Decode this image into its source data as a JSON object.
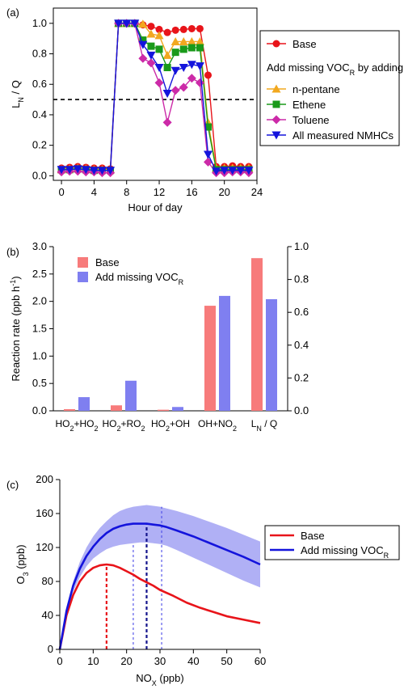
{
  "chart_data": [
    {
      "type": "line",
      "panel_label": "(a)",
      "xlabel": "Hour of day",
      "ylabel": "L",
      "ylabel_sub": "N",
      "ylabel_tail": " / Q",
      "xlim": [
        -1,
        24
      ],
      "ylim": [
        -0.03,
        1.1
      ],
      "xticks": [
        0,
        4,
        8,
        12,
        16,
        20,
        24
      ],
      "yticks": [
        0.0,
        0.2,
        0.4,
        0.6,
        0.8,
        1.0
      ],
      "ytick_labels": [
        "0.0",
        "0.2",
        "0.4",
        "0.6",
        "0.8",
        "1.0"
      ],
      "reference_line": {
        "y": 0.5,
        "style": "dashed"
      },
      "legend_heading": "Add missing VOC",
      "legend_heading_sub": "R",
      "legend_heading_tail": " by adding",
      "x": [
        0,
        1,
        2,
        3,
        4,
        5,
        6,
        7,
        8,
        9,
        10,
        11,
        12,
        13,
        14,
        15,
        16,
        17,
        18,
        19,
        20,
        21,
        22,
        23
      ],
      "series": [
        {
          "name": "Base",
          "color": "#e8141a",
          "marker": "circle",
          "values": [
            0.05,
            0.055,
            0.06,
            0.055,
            0.05,
            0.05,
            0.045,
            1.0,
            1.0,
            1.0,
            0.99,
            0.98,
            0.96,
            0.94,
            0.955,
            0.96,
            0.965,
            0.965,
            0.66,
            0.06,
            0.06,
            0.065,
            0.06,
            0.06
          ]
        },
        {
          "name": "n-pentane",
          "color": "#f2a81f",
          "marker": "triangle-up",
          "values": [
            0.04,
            0.045,
            0.05,
            0.045,
            0.04,
            0.04,
            0.04,
            1.0,
            1.0,
            1.0,
            0.995,
            0.93,
            0.92,
            0.79,
            0.88,
            0.88,
            0.88,
            0.88,
            0.35,
            0.05,
            0.05,
            0.05,
            0.05,
            0.05
          ]
        },
        {
          "name": "Ethene",
          "color": "#1a9a1a",
          "marker": "square",
          "values": [
            0.04,
            0.04,
            0.045,
            0.04,
            0.035,
            0.035,
            0.035,
            1.0,
            1.0,
            1.0,
            0.89,
            0.85,
            0.83,
            0.71,
            0.81,
            0.83,
            0.84,
            0.84,
            0.32,
            0.04,
            0.04,
            0.04,
            0.04,
            0.04
          ]
        },
        {
          "name": "Toluene",
          "color": "#cc2aa8",
          "marker": "diamond",
          "values": [
            0.025,
            0.03,
            0.03,
            0.025,
            0.025,
            0.02,
            0.02,
            1.0,
            1.0,
            1.0,
            0.77,
            0.74,
            0.61,
            0.35,
            0.56,
            0.58,
            0.64,
            0.61,
            0.09,
            0.02,
            0.02,
            0.025,
            0.025,
            0.02
          ]
        },
        {
          "name": "All measured NMHCs",
          "color": "#1414dc",
          "marker": "triangle-down",
          "values": [
            0.04,
            0.04,
            0.045,
            0.04,
            0.035,
            0.035,
            0.035,
            1.0,
            1.0,
            1.0,
            0.86,
            0.79,
            0.71,
            0.54,
            0.69,
            0.71,
            0.73,
            0.72,
            0.14,
            0.03,
            0.035,
            0.035,
            0.035,
            0.035
          ]
        }
      ]
    },
    {
      "type": "bar",
      "panel_label": "(b)",
      "ylabel": "Reaction rate  (ppb h",
      "ylabel_sup": "-1",
      "ylabel_tail": ")",
      "ylim": [
        0,
        3.0
      ],
      "yticks": [
        0,
        0.5,
        1.0,
        1.5,
        2.0,
        2.5,
        3.0
      ],
      "ytick_labels": [
        "0.0",
        "0.5",
        "1.0",
        "1.5",
        "2.0",
        "2.5",
        "3.0"
      ],
      "y2lim": [
        0,
        1.0
      ],
      "y2ticks": [
        0,
        0.2,
        0.4,
        0.6,
        0.8,
        1.0
      ],
      "y2tick_labels": [
        "0.0",
        "0.2",
        "0.4",
        "0.6",
        "0.8",
        "1.0"
      ],
      "categories": [
        {
          "parts": [
            [
              "HO",
              "n"
            ],
            [
              "2",
              "sub"
            ],
            [
              "+HO",
              "n"
            ],
            [
              "2",
              "sub"
            ]
          ]
        },
        {
          "parts": [
            [
              "HO",
              "n"
            ],
            [
              "2",
              "sub"
            ],
            [
              "+RO",
              "n"
            ],
            [
              "2",
              "sub"
            ]
          ]
        },
        {
          "parts": [
            [
              "HO",
              "n"
            ],
            [
              "2",
              "sub"
            ],
            [
              "+OH",
              "n"
            ]
          ]
        },
        {
          "parts": [
            [
              "OH+NO",
              "n"
            ],
            [
              "2",
              "sub"
            ]
          ]
        },
        {
          "parts": [
            [
              "L",
              "n"
            ],
            [
              "N",
              "sub"
            ],
            [
              " / Q",
              "n"
            ]
          ]
        }
      ],
      "series": [
        {
          "name": "Base",
          "color": "#f77b7b",
          "values": [
            0.03,
            0.1,
            0.02,
            1.92,
            0.93
          ]
        },
        {
          "name": "Add missing VOC",
          "name_sub": "R",
          "color": "#7f7ff0",
          "values": [
            0.25,
            0.55,
            0.07,
            2.1,
            0.68
          ]
        }
      ],
      "axis_of_last_category": "right"
    },
    {
      "type": "line",
      "panel_label": "(c)",
      "xlabel": "NO",
      "xlabel_sub": "X",
      "xlabel_tail": "  (ppb)",
      "ylabel": "O",
      "ylabel_sub": "3",
      "ylabel_tail": "  (ppb)",
      "xlim": [
        0,
        60
      ],
      "ylim": [
        0,
        200
      ],
      "xticks": [
        0,
        10,
        20,
        30,
        40,
        50,
        60
      ],
      "yticks": [
        0,
        40,
        80,
        120,
        160,
        200
      ],
      "series": [
        {
          "name": "Base",
          "color": "#e8141a",
          "x": [
            0,
            2,
            4,
            6,
            8,
            10,
            12,
            14,
            16,
            18,
            20,
            22,
            24,
            26,
            28,
            30,
            34,
            38,
            42,
            46,
            50,
            55,
            60
          ],
          "values": [
            0,
            40,
            64,
            80,
            90,
            96,
            99,
            100,
            99,
            96,
            92,
            88,
            83,
            79,
            75,
            70,
            63,
            55,
            49,
            44,
            39,
            35,
            31
          ]
        },
        {
          "name": "Add missing VOC",
          "name_sub": "R",
          "color": "#1414dc",
          "x": [
            0,
            2,
            4,
            6,
            8,
            10,
            12,
            14,
            16,
            18,
            20,
            22,
            24,
            26,
            28,
            30,
            32,
            35,
            40,
            45,
            50,
            55,
            60
          ],
          "values": [
            0,
            45,
            75,
            95,
            110,
            121,
            130,
            137,
            142,
            145,
            147,
            148,
            148,
            148,
            147,
            146,
            144,
            140,
            133,
            125,
            117,
            109,
            100
          ]
        }
      ],
      "band": {
        "color": "#b0b0f5",
        "x": [
          0,
          2,
          4,
          6,
          8,
          10,
          12,
          14,
          16,
          18,
          20,
          22,
          24,
          26,
          28,
          30,
          32,
          35,
          40,
          45,
          50,
          55,
          60
        ],
        "lower": [
          0,
          42,
          68,
          85,
          98,
          107,
          113,
          118,
          121,
          123,
          124,
          125,
          126,
          126,
          125,
          124,
          122,
          117,
          108,
          99,
          90,
          81,
          73
        ],
        "upper": [
          0,
          48,
          80,
          103,
          120,
          133,
          143,
          151,
          158,
          163,
          166,
          168,
          169,
          170,
          169,
          168,
          166,
          163,
          157,
          150,
          143,
          135,
          127
        ]
      },
      "drop_lines": [
        {
          "x": 14,
          "y": 100,
          "color": "#e8141a",
          "style": "thick-dashed"
        },
        {
          "x": 26,
          "y": 148,
          "color": "#14148c",
          "style": "thick-dashed"
        },
        {
          "x": 22,
          "y": 125,
          "color": "#4b4be8",
          "style": "thin-dashed"
        },
        {
          "x": 30.5,
          "y": 168,
          "color": "#4b4be8",
          "style": "thin-dashed"
        }
      ]
    }
  ]
}
